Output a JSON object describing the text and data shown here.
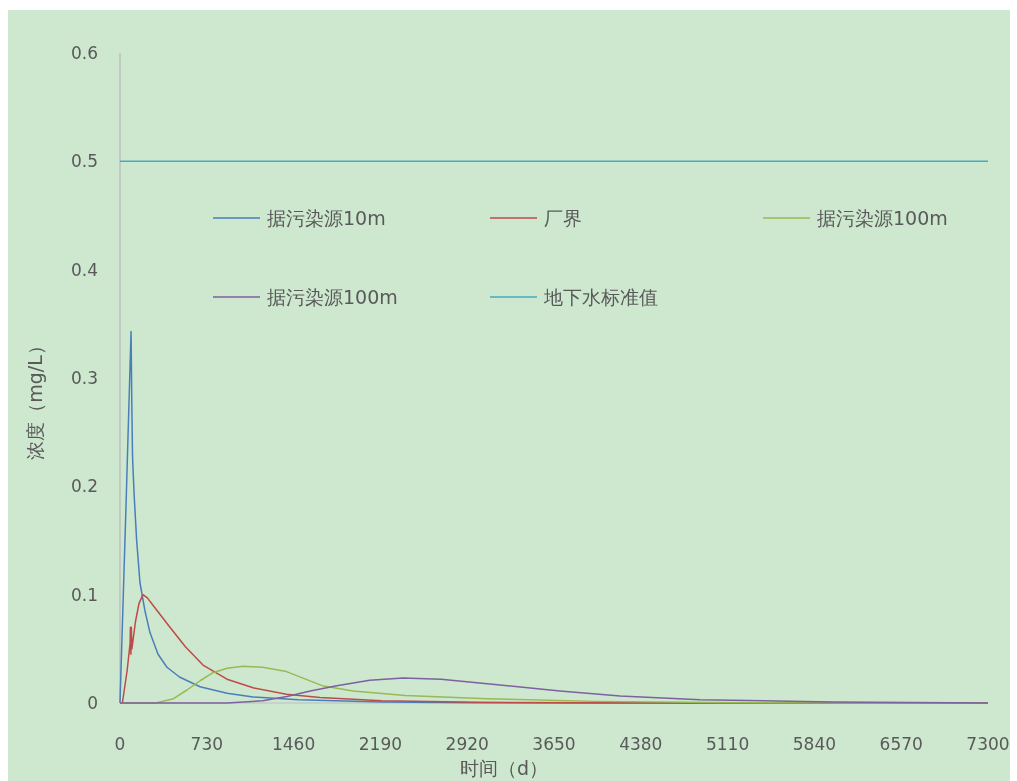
{
  "chart_data": {
    "type": "line",
    "xlabel": "时间（d）",
    "ylabel": "浓度（mg/L）",
    "xlim": [
      0,
      7300
    ],
    "xticks": [
      0,
      730,
      1460,
      2190,
      2920,
      3650,
      4380,
      5110,
      5840,
      6570,
      7300
    ],
    "ylim": [
      0,
      0.6
    ],
    "yticks": [
      0,
      0.1,
      0.2,
      0.3,
      0.4,
      0.5,
      0.6
    ],
    "grid": false,
    "legend": "top",
    "series": [
      {
        "name": "据污染源10m",
        "color": "#4a7ebb",
        "x": [
          0,
          50,
          93,
          100,
          105,
          108,
          120,
          140,
          168,
          210,
          252,
          320,
          395,
          500,
          673,
          900,
          1120,
          1500,
          2200,
          3000,
          4000,
          7300
        ],
        "values": [
          0,
          0.18,
          0.343,
          0.27,
          0.23,
          0.22,
          0.19,
          0.15,
          0.111,
          0.085,
          0.065,
          0.045,
          0.033,
          0.024,
          0.015,
          0.009,
          0.0055,
          0.003,
          0.001,
          0.0003,
          0,
          0
        ]
      },
      {
        "name": "厂界",
        "color": "#be4b48",
        "x": [
          0,
          20,
          60,
          85,
          88,
          92,
          95,
          100,
          130,
          160,
          193,
          230,
          300,
          420,
          550,
          698,
          900,
          1119,
          1400,
          1682,
          2200,
          3000,
          4000,
          5000,
          7300
        ],
        "values": [
          0,
          0,
          0.03,
          0.055,
          0.07,
          0.045,
          0.07,
          0.05,
          0.075,
          0.092,
          0.1,
          0.097,
          0.087,
          0.07,
          0.052,
          0.035,
          0.022,
          0.014,
          0.008,
          0.005,
          0.002,
          0.0007,
          0.0002,
          0,
          0
        ]
      },
      {
        "name": "据污染源100m",
        "color": "#98b954",
        "x": [
          0,
          300,
          450,
          563,
          680,
          782,
          900,
          1035,
          1200,
          1400,
          1700,
          1960,
          2400,
          3087,
          4000,
          5000,
          6000,
          7300
        ],
        "values": [
          0,
          0,
          0.004,
          0.012,
          0.021,
          0.028,
          0.032,
          0.034,
          0.033,
          0.029,
          0.016,
          0.011,
          0.007,
          0.004,
          0.0015,
          0.0005,
          0,
          0
        ]
      },
      {
        "name": "据污染源100m",
        "color": "#7d60a0",
        "x": [
          0,
          900,
          1200,
          1404,
          1600,
          1824,
          2100,
          2380,
          2700,
          3196,
          3700,
          4205,
          4878,
          5998,
          7300
        ],
        "values": [
          0,
          0,
          0.002,
          0.006,
          0.011,
          0.016,
          0.021,
          0.023,
          0.022,
          0.0166,
          0.011,
          0.0065,
          0.003,
          0.001,
          0
        ]
      },
      {
        "name": "地下水标准值",
        "color": "#46aac5",
        "x": [
          0,
          7300
        ],
        "values": [
          0.5,
          0.5
        ]
      }
    ]
  }
}
